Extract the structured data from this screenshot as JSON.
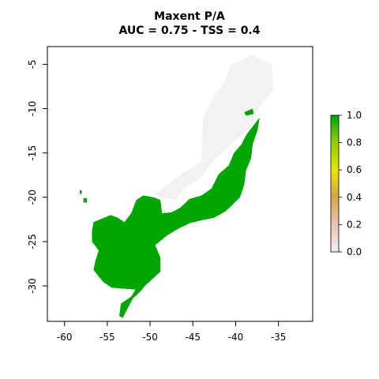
{
  "title": {
    "line1": "Maxent P/A",
    "line2": "AUC = 0.75 - TSS = 0.4"
  },
  "chart_data": {
    "type": "heatmap",
    "title": "Maxent P/A",
    "subtitle": "AUC = 0.75 - TSS = 0.4",
    "xlim": [
      -62,
      -31
    ],
    "ylim": [
      -34,
      -3
    ],
    "x_ticks": [
      -60,
      -55,
      -50,
      -45,
      -40,
      -35
    ],
    "y_ticks": [
      -5,
      -10,
      -15,
      -20,
      -25,
      -30
    ],
    "legend": {
      "placement": "right",
      "range": [
        0.0,
        1.0
      ],
      "ticks": [
        "0.0",
        "0.2",
        "0.4",
        "0.6",
        "0.8",
        "1.0"
      ],
      "colors": [
        "#f2f2f2",
        "#e8c4b3",
        "#d8a64b",
        "#e6e600",
        "#8fcf00",
        "#00a600"
      ]
    },
    "presence_color": "#00a600",
    "absence_color": "#f2f2f2",
    "regions": [
      {
        "value": 1,
        "outline": [
          [
            -56.6,
            -22.8
          ],
          [
            -55.6,
            -22.4
          ],
          [
            -54.6,
            -22.0
          ],
          [
            -53.8,
            -22.3
          ],
          [
            -53.0,
            -22.8
          ],
          [
            -52.2,
            -21.8
          ],
          [
            -51.6,
            -20.3
          ],
          [
            -50.8,
            -19.8
          ],
          [
            -49.6,
            -20.0
          ],
          [
            -48.8,
            -20.3
          ],
          [
            -48.6,
            -21.8
          ],
          [
            -47.5,
            -21.7
          ],
          [
            -46.5,
            -21.2
          ],
          [
            -45.4,
            -20.2
          ],
          [
            -44.0,
            -19.8
          ],
          [
            -42.8,
            -19.0
          ],
          [
            -42.0,
            -17.4
          ],
          [
            -40.8,
            -16.4
          ],
          [
            -40.2,
            -15.0
          ],
          [
            -39.3,
            -14.0
          ],
          [
            -38.8,
            -13.0
          ],
          [
            -38.0,
            -12.0
          ],
          [
            -37.2,
            -11.0
          ],
          [
            -37.4,
            -12.3
          ],
          [
            -38.0,
            -14.0
          ],
          [
            -38.2,
            -15.6
          ],
          [
            -38.8,
            -17.0
          ],
          [
            -39.0,
            -18.6
          ],
          [
            -39.5,
            -20.0
          ],
          [
            -40.3,
            -20.8
          ],
          [
            -41.2,
            -21.6
          ],
          [
            -42.5,
            -22.3
          ],
          [
            -44.0,
            -22.6
          ],
          [
            -45.3,
            -22.9
          ],
          [
            -46.6,
            -23.5
          ],
          [
            -48.0,
            -24.3
          ],
          [
            -49.4,
            -25.4
          ],
          [
            -48.8,
            -26.8
          ],
          [
            -48.8,
            -28.4
          ],
          [
            -49.8,
            -29.3
          ],
          [
            -50.6,
            -30.0
          ],
          [
            -51.2,
            -30.7
          ],
          [
            -52.0,
            -31.4
          ],
          [
            -53.2,
            -33.6
          ],
          [
            -53.6,
            -33.4
          ],
          [
            -53.4,
            -32.0
          ],
          [
            -52.2,
            -31.2
          ],
          [
            -51.7,
            -30.4
          ],
          [
            -53.2,
            -30.3
          ],
          [
            -54.5,
            -30.2
          ],
          [
            -55.4,
            -29.6
          ],
          [
            -55.8,
            -29.2
          ],
          [
            -56.6,
            -28.2
          ],
          [
            -56.4,
            -27.2
          ],
          [
            -56.0,
            -26.0
          ],
          [
            -56.8,
            -25.0
          ],
          [
            -56.8,
            -23.8
          ]
        ]
      },
      {
        "value": 1,
        "outline": [
          [
            -39.0,
            -10.4
          ],
          [
            -38.0,
            -10.0
          ],
          [
            -37.9,
            -10.6
          ],
          [
            -38.8,
            -10.8
          ]
        ]
      },
      {
        "value": 0,
        "outline": [
          [
            -44.0,
            -16.0
          ],
          [
            -43.8,
            -11.0
          ],
          [
            -42.5,
            -8.5
          ],
          [
            -41.3,
            -7.0
          ],
          [
            -40.5,
            -5.0
          ],
          [
            -38.0,
            -4.0
          ],
          [
            -35.8,
            -5.0
          ],
          [
            -35.6,
            -8.0
          ],
          [
            -37.4,
            -10.0
          ],
          [
            -38.2,
            -12.0
          ],
          [
            -40.5,
            -14.0
          ],
          [
            -42.5,
            -15.8
          ],
          [
            -44.3,
            -18.0
          ],
          [
            -46.0,
            -19.0
          ],
          [
            -47.0,
            -20.3
          ],
          [
            -48.8,
            -20.0
          ],
          [
            -49.4,
            -19.6
          ],
          [
            -47.8,
            -18.4
          ],
          [
            -46.0,
            -17.2
          ]
        ]
      },
      {
        "value": 1,
        "outline": [
          [
            -57.8,
            -20.1
          ],
          [
            -57.4,
            -20.1
          ],
          [
            -57.4,
            -20.6
          ],
          [
            -57.8,
            -20.6
          ]
        ]
      },
      {
        "value": 1,
        "outline": [
          [
            -58.2,
            -19.2
          ],
          [
            -58.0,
            -19.2
          ],
          [
            -58.0,
            -19.6
          ],
          [
            -58.2,
            -19.6
          ]
        ]
      }
    ]
  }
}
